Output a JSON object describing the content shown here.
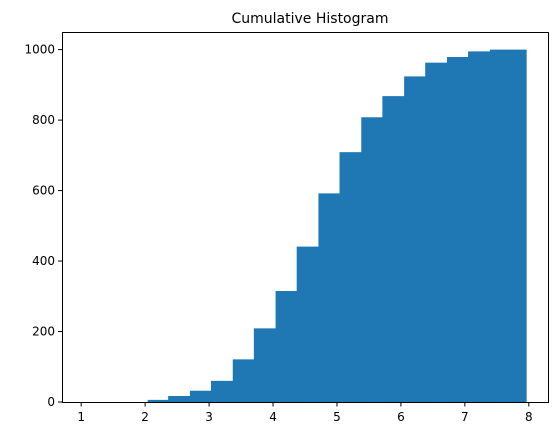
{
  "chart_data": {
    "type": "bar",
    "title": "Cumulative Histogram",
    "xlabel": "",
    "ylabel": "",
    "cumulative": true,
    "bar_color": "#1f77b4",
    "xlim": [
      0.7,
      8.3
    ],
    "ylim": [
      0,
      1050
    ],
    "bin_edges": [
      2.04,
      2.36,
      2.7,
      3.03,
      3.37,
      3.7,
      4.04,
      4.37,
      4.71,
      5.04,
      5.38,
      5.71,
      6.05,
      6.38,
      6.72,
      7.05,
      7.39,
      7.72,
      7.96
    ],
    "values": [
      6,
      17,
      32,
      60,
      121,
      209,
      315,
      441,
      592,
      709,
      808,
      868,
      924,
      963,
      979,
      995,
      1000,
      1000
    ],
    "x_ticks": [
      {
        "value": 1,
        "label": "1"
      },
      {
        "value": 2,
        "label": "2"
      },
      {
        "value": 3,
        "label": "3"
      },
      {
        "value": 4,
        "label": "4"
      },
      {
        "value": 5,
        "label": "5"
      },
      {
        "value": 6,
        "label": "6"
      },
      {
        "value": 7,
        "label": "7"
      },
      {
        "value": 8,
        "label": "8"
      }
    ],
    "y_ticks": [
      {
        "value": 0,
        "label": "0"
      },
      {
        "value": 200,
        "label": "200"
      },
      {
        "value": 400,
        "label": "400"
      },
      {
        "value": 600,
        "label": "600"
      },
      {
        "value": 800,
        "label": "800"
      },
      {
        "value": 1000,
        "label": "1000"
      }
    ],
    "grid": false,
    "legend": "none"
  }
}
